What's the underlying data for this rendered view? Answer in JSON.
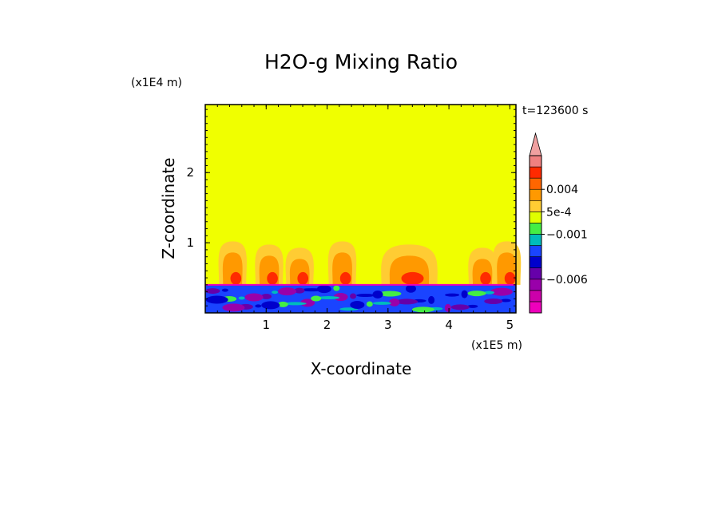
{
  "chart_data": {
    "type": "heatmap",
    "title": "H2O-g Mixing Ratio",
    "xlabel": "X-coordinate",
    "ylabel": "Z-coordinate",
    "x_scale_label": "(x1E5 m)",
    "y_scale_label": "(x1E4 m)",
    "time_label": "t=123600 s",
    "xlim": [
      0,
      5.1
    ],
    "ylim": [
      0,
      2.97
    ],
    "x_ticks": [
      1,
      2,
      3,
      4,
      5
    ],
    "x_tick_labels": [
      "1",
      "2",
      "3",
      "4",
      "5"
    ],
    "y_ticks": [
      1,
      2
    ],
    "y_tick_labels": [
      "1",
      "2"
    ],
    "grid": false,
    "background_field_color": "#f0ff00",
    "colorbar": {
      "levels_bottom_to_top": [
        {
          "color": "#ee00bb"
        },
        {
          "color": "#cc00aa"
        },
        {
          "color": "#9900aa"
        },
        {
          "color": "#6600aa"
        },
        {
          "color": "#0000cc"
        },
        {
          "color": "#1a44ff"
        },
        {
          "color": "#00bbbb"
        },
        {
          "color": "#44ee44"
        },
        {
          "color": "#e0ff00"
        },
        {
          "color": "#ffcc33"
        },
        {
          "color": "#ff9900"
        },
        {
          "color": "#ff6600"
        },
        {
          "color": "#ff2a00"
        },
        {
          "color": "#f08080"
        }
      ],
      "overflow_color": "#f0a0a0",
      "labels": [
        {
          "text": "0.004",
          "level_index": 11
        },
        {
          "text": "5e-4",
          "level_index": 9
        },
        {
          "text": "−0.001",
          "level_index": 7
        },
        {
          "text": "−0.006",
          "level_index": 3
        }
      ]
    },
    "plume_centers_x": [
      0.45,
      1.05,
      1.55,
      2.25,
      3.35,
      4.55,
      4.95
    ],
    "boundary_layer_top_z": 0.4
  }
}
